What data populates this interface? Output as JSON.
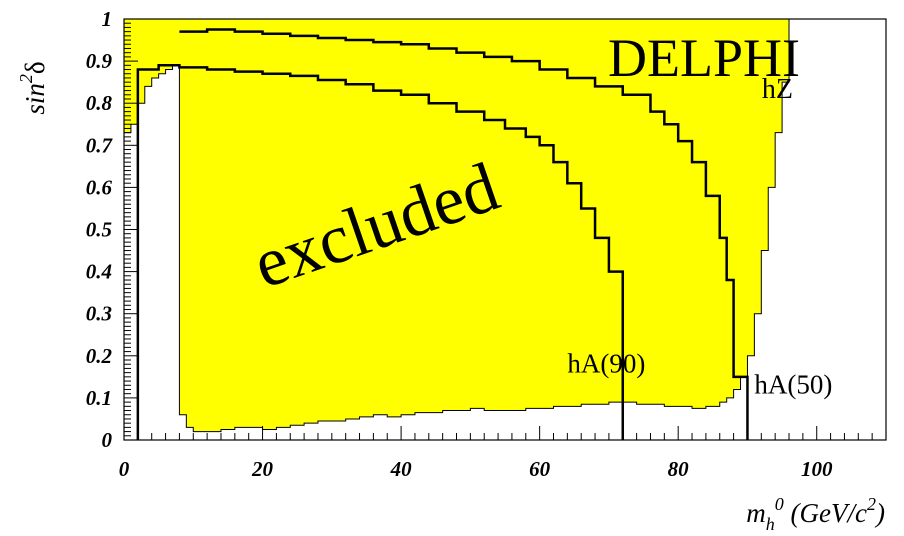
{
  "chart_data": {
    "type": "area",
    "title": "DELPHI",
    "subtitle": "hZ",
    "region_label": "excluded",
    "xlabel": {
      "main": "m",
      "sub": "h",
      "sup": "0",
      "unit": " (GeV/c",
      "unit_sup": "2",
      "close": ")"
    },
    "ylabel": {
      "main": "sin",
      "sup": "2",
      "greek": "δ"
    },
    "xlim": [
      0,
      110
    ],
    "ylim": [
      0,
      1
    ],
    "x_ticks": [
      0,
      20,
      40,
      60,
      80,
      100
    ],
    "x_tick_labels": [
      "0",
      "20",
      "40",
      "60",
      "80",
      "100"
    ],
    "y_ticks": [
      0,
      0.1,
      0.2,
      0.3,
      0.4,
      0.5,
      0.6,
      0.7,
      0.8,
      0.9,
      1
    ],
    "y_tick_labels": [
      "0",
      "0.1",
      "0.2",
      "0.3",
      "0.4",
      "0.5",
      "0.6",
      "0.7",
      "0.8",
      "0.9",
      "1"
    ],
    "colors": {
      "excluded_fill": "#ffff00",
      "lines": "#000000",
      "background": "#ffffff"
    },
    "series": [
      {
        "name": "hZ",
        "kind": "excluded-band",
        "upper_limit": 1.0,
        "lower_boundary": [
          [
            0,
            0.73
          ],
          [
            1,
            0.75
          ],
          [
            2,
            0.8
          ],
          [
            3,
            0.84
          ],
          [
            4,
            0.86
          ],
          [
            5,
            0.87
          ],
          [
            6,
            0.88
          ],
          [
            7,
            0.89
          ],
          [
            8,
            0.06
          ],
          [
            9,
            0.03
          ],
          [
            10,
            0.02
          ],
          [
            12,
            0.02
          ],
          [
            14,
            0.025
          ],
          [
            16,
            0.03
          ],
          [
            18,
            0.03
          ],
          [
            20,
            0.025
          ],
          [
            22,
            0.03
          ],
          [
            24,
            0.035
          ],
          [
            26,
            0.04
          ],
          [
            28,
            0.045
          ],
          [
            30,
            0.045
          ],
          [
            32,
            0.05
          ],
          [
            34,
            0.055
          ],
          [
            36,
            0.06
          ],
          [
            38,
            0.055
          ],
          [
            40,
            0.06
          ],
          [
            42,
            0.065
          ],
          [
            44,
            0.065
          ],
          [
            46,
            0.07
          ],
          [
            48,
            0.07
          ],
          [
            50,
            0.075
          ],
          [
            52,
            0.07
          ],
          [
            54,
            0.07
          ],
          [
            56,
            0.07
          ],
          [
            58,
            0.075
          ],
          [
            60,
            0.075
          ],
          [
            62,
            0.08
          ],
          [
            64,
            0.08
          ],
          [
            66,
            0.085
          ],
          [
            68,
            0.085
          ],
          [
            70,
            0.09
          ],
          [
            72,
            0.09
          ],
          [
            74,
            0.085
          ],
          [
            76,
            0.085
          ],
          [
            78,
            0.08
          ],
          [
            80,
            0.08
          ],
          [
            82,
            0.075
          ],
          [
            84,
            0.08
          ],
          [
            86,
            0.09
          ],
          [
            87,
            0.1
          ],
          [
            88,
            0.12
          ],
          [
            89,
            0.15
          ],
          [
            90,
            0.2
          ],
          [
            91,
            0.3
          ],
          [
            92,
            0.45
          ],
          [
            93,
            0.6
          ],
          [
            94,
            0.73
          ],
          [
            95,
            0.85
          ],
          [
            96,
            0.95
          ],
          [
            96,
            1.0
          ]
        ]
      },
      {
        "name": "hA(90)",
        "kind": "contour",
        "points": [
          [
            2,
            0.0
          ],
          [
            2,
            0.88
          ],
          [
            5,
            0.89
          ],
          [
            8,
            0.885
          ],
          [
            12,
            0.88
          ],
          [
            16,
            0.875
          ],
          [
            20,
            0.87
          ],
          [
            24,
            0.865
          ],
          [
            28,
            0.855
          ],
          [
            32,
            0.845
          ],
          [
            36,
            0.83
          ],
          [
            40,
            0.82
          ],
          [
            44,
            0.8
          ],
          [
            48,
            0.78
          ],
          [
            52,
            0.76
          ],
          [
            55,
            0.74
          ],
          [
            58,
            0.72
          ],
          [
            60,
            0.7
          ],
          [
            62,
            0.66
          ],
          [
            64,
            0.61
          ],
          [
            66,
            0.55
          ],
          [
            68,
            0.48
          ],
          [
            70,
            0.4
          ],
          [
            72,
            0.33
          ],
          [
            72,
            0.0
          ]
        ]
      },
      {
        "name": "hA(50)",
        "kind": "contour",
        "points": [
          [
            8,
            0.97
          ],
          [
            12,
            0.975
          ],
          [
            16,
            0.97
          ],
          [
            20,
            0.965
          ],
          [
            24,
            0.96
          ],
          [
            28,
            0.955
          ],
          [
            32,
            0.95
          ],
          [
            36,
            0.945
          ],
          [
            40,
            0.94
          ],
          [
            44,
            0.93
          ],
          [
            48,
            0.92
          ],
          [
            52,
            0.91
          ],
          [
            56,
            0.9
          ],
          [
            60,
            0.88
          ],
          [
            64,
            0.86
          ],
          [
            68,
            0.84
          ],
          [
            72,
            0.82
          ],
          [
            76,
            0.78
          ],
          [
            78,
            0.75
          ],
          [
            80,
            0.71
          ],
          [
            82,
            0.66
          ],
          [
            84,
            0.58
          ],
          [
            86,
            0.48
          ],
          [
            87,
            0.38
          ],
          [
            88,
            0.28
          ],
          [
            88,
            0.15
          ],
          [
            90,
            0.15
          ],
          [
            90,
            0.0
          ]
        ]
      }
    ],
    "annotations": [
      {
        "text": "hA(90)",
        "x": 64,
        "y": 0.16
      },
      {
        "text": "hA(50)",
        "x": 91,
        "y": 0.11
      }
    ]
  }
}
